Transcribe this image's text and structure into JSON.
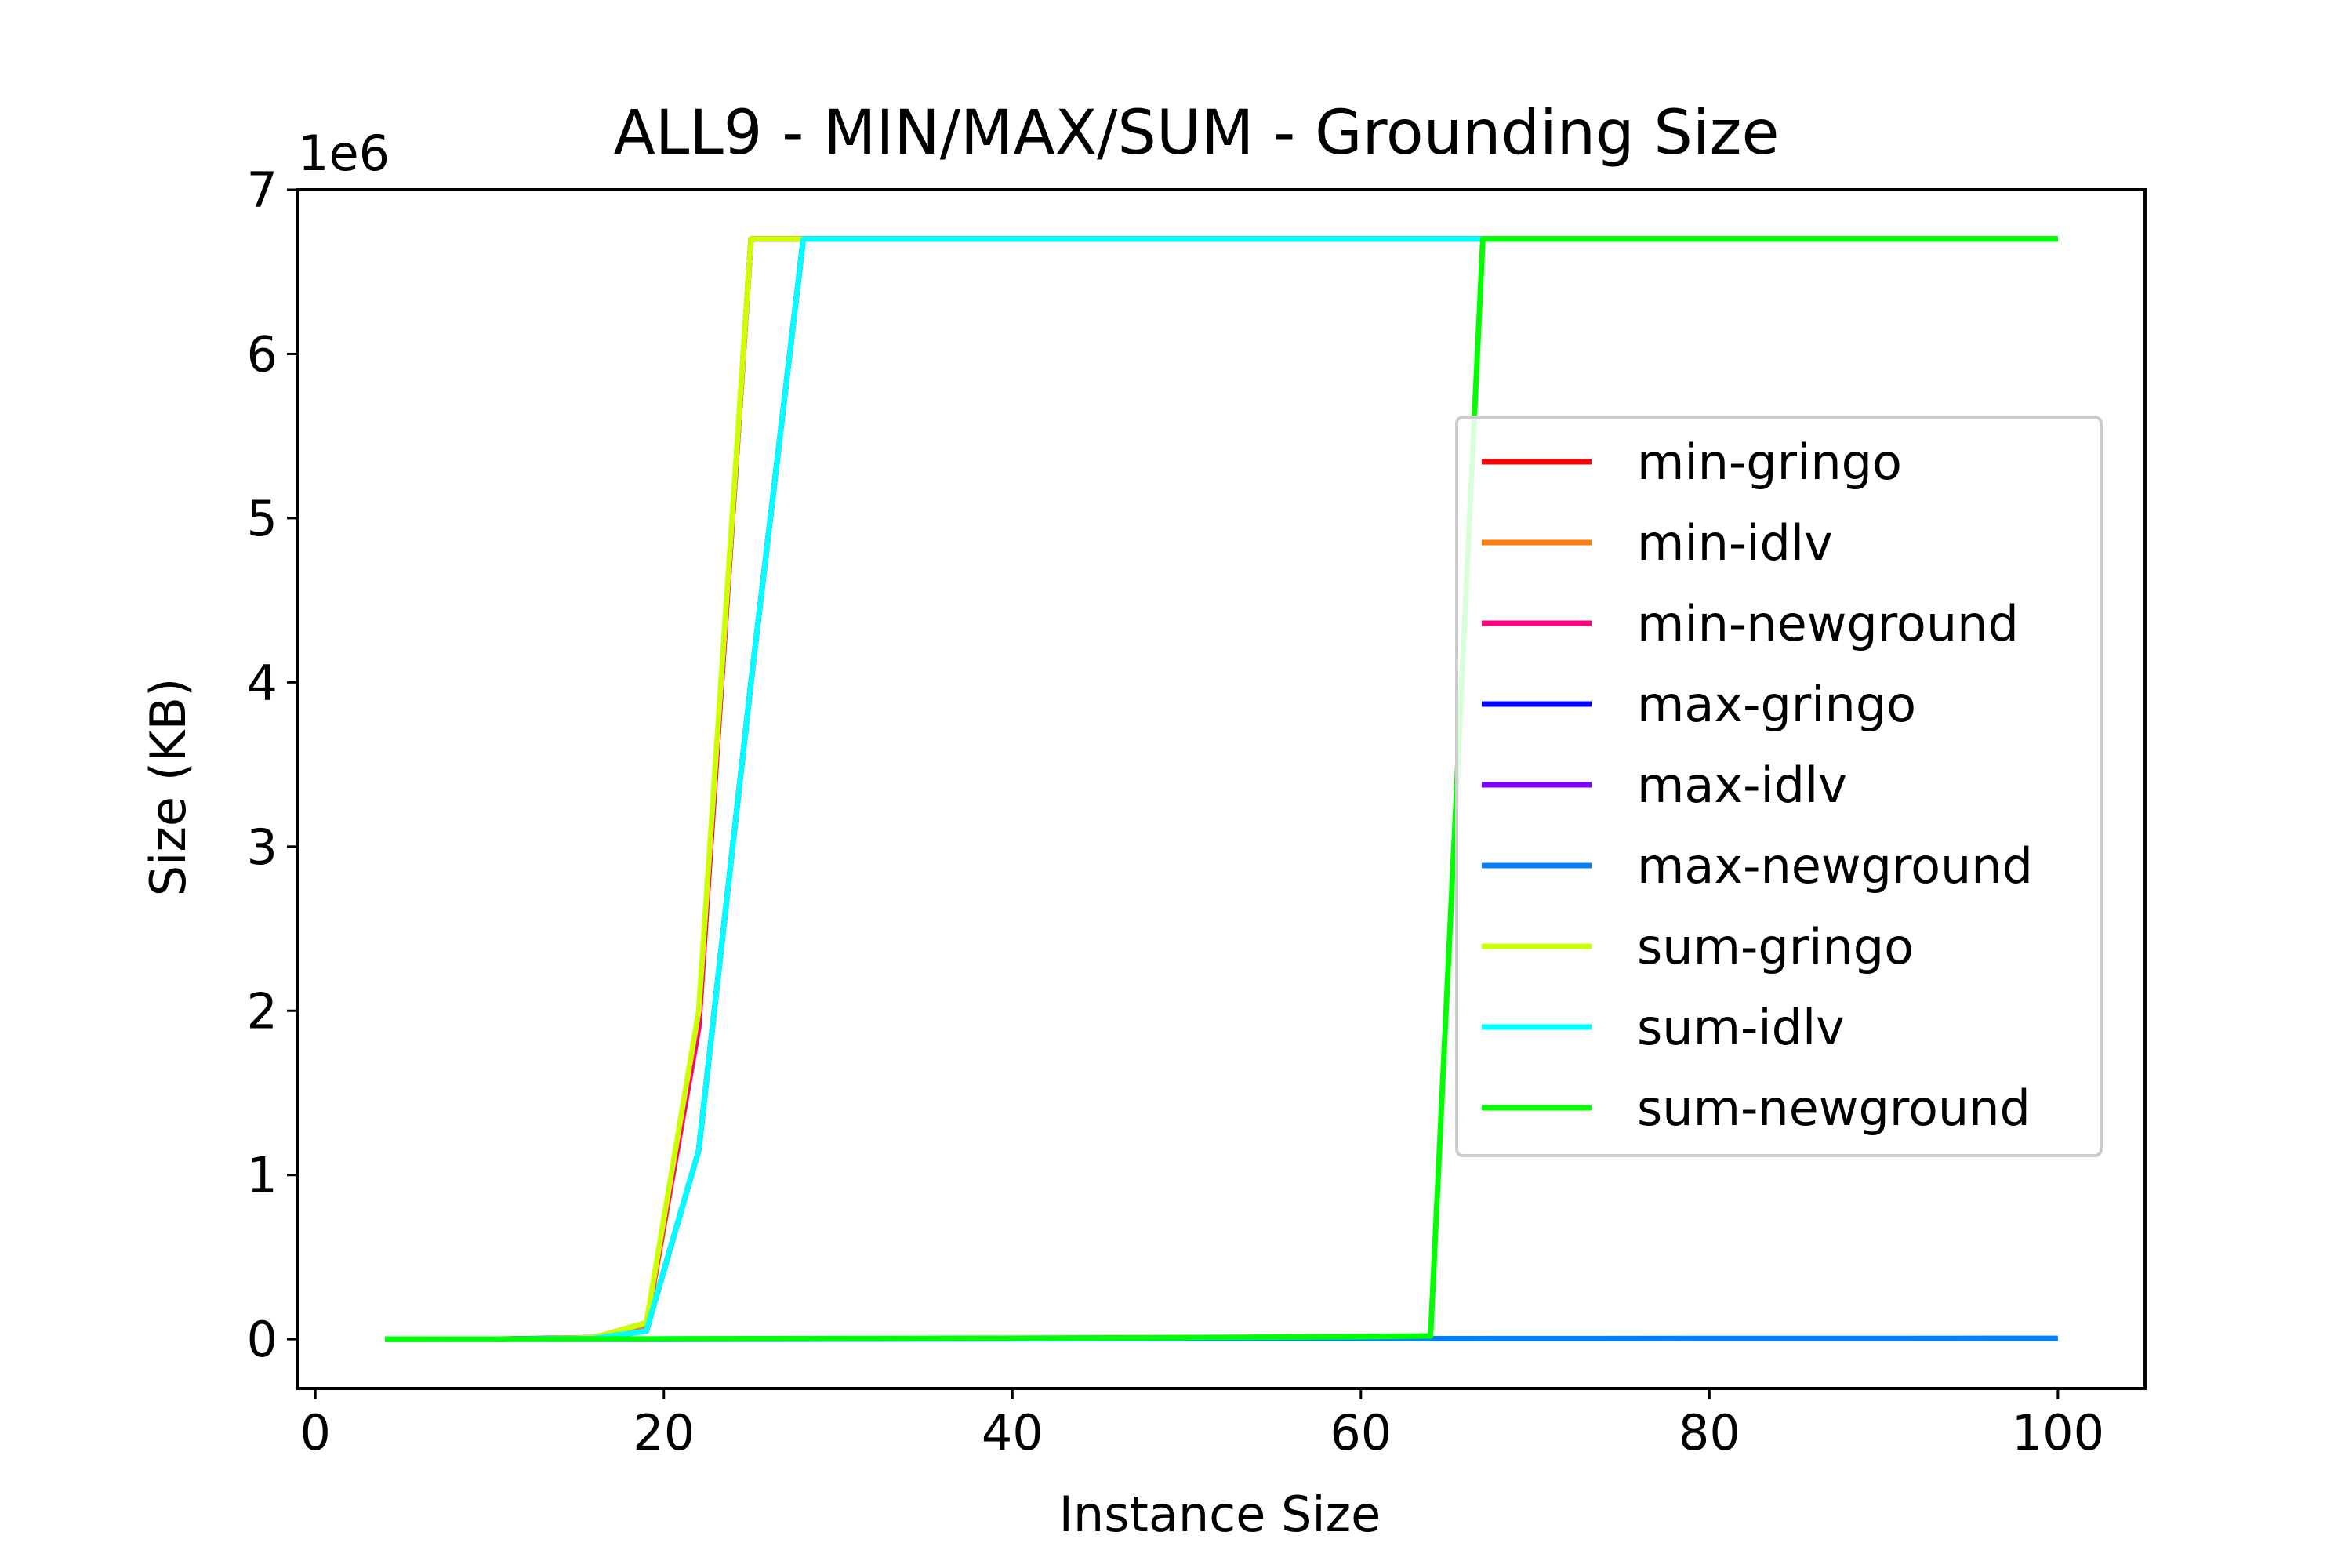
{
  "chart_data": {
    "type": "line",
    "title": "ALL9 - MIN/MAX/SUM - Grounding Size",
    "xlabel": "Instance Size",
    "ylabel": "Size (KB)",
    "y_offset_label": "1e6",
    "xlim": [
      -1,
      105
    ],
    "ylim": [
      -0.3,
      7
    ],
    "xticks": [
      0,
      20,
      40,
      60,
      80,
      100
    ],
    "yticks": [
      0,
      1,
      2,
      3,
      4,
      5,
      6,
      7
    ],
    "y_scale_factor": 1000000,
    "grid": false,
    "legend_position": "center-right",
    "series": [
      {
        "name": "min-gringo",
        "color": "#ff0000",
        "x": [
          4,
          7,
          10,
          13,
          16,
          19,
          22,
          25,
          100
        ],
        "y": [
          0,
          0,
          0,
          0.002,
          0.01,
          0.08,
          1.9,
          6.7,
          6.7
        ]
      },
      {
        "name": "min-idlv",
        "color": "#ff7f0e",
        "x": [
          4,
          7,
          10,
          13,
          16,
          19,
          22,
          25,
          100
        ],
        "y": [
          0,
          0,
          0,
          0.002,
          0.01,
          0.08,
          1.9,
          6.7,
          6.7
        ]
      },
      {
        "name": "min-newground",
        "color": "#ff0080",
        "x": [
          4,
          10,
          16,
          19,
          22,
          25,
          100
        ],
        "y": [
          0,
          0,
          0.01,
          0.1,
          1.9,
          6.7,
          6.7
        ]
      },
      {
        "name": "max-gringo",
        "color": "#0000ff",
        "x": [
          4,
          10,
          16,
          19,
          22,
          25,
          28,
          100
        ],
        "y": [
          0,
          0,
          0.005,
          0.05,
          1.15,
          4.0,
          6.7,
          6.7
        ]
      },
      {
        "name": "max-idlv",
        "color": "#8000ff",
        "x": [
          4,
          10,
          16,
          19,
          22,
          25,
          28,
          100
        ],
        "y": [
          0,
          0,
          0.005,
          0.05,
          1.15,
          4.0,
          6.7,
          6.7
        ]
      },
      {
        "name": "max-newground",
        "color": "#0080ff",
        "x": [
          4,
          20,
          40,
          60,
          80,
          100
        ],
        "y": [
          0,
          0,
          0.002,
          0.003,
          0.004,
          0.005
        ]
      },
      {
        "name": "sum-gringo",
        "color": "#ccff00",
        "x": [
          4,
          7,
          10,
          13,
          16,
          19,
          22,
          25,
          100
        ],
        "y": [
          0,
          0,
          0,
          0.002,
          0.01,
          0.1,
          2.0,
          6.7,
          6.7
        ]
      },
      {
        "name": "sum-idlv",
        "color": "#00ffff",
        "x": [
          4,
          10,
          16,
          19,
          22,
          25,
          28,
          100
        ],
        "y": [
          0,
          0,
          0.005,
          0.05,
          1.15,
          4.0,
          6.7,
          6.7
        ]
      },
      {
        "name": "sum-newground",
        "color": "#00ff00",
        "x": [
          4,
          10,
          20,
          30,
          40,
          50,
          60,
          64,
          67,
          100
        ],
        "y": [
          0,
          0.001,
          0.002,
          0.004,
          0.006,
          0.01,
          0.015,
          0.02,
          6.7,
          6.7
        ]
      }
    ]
  }
}
